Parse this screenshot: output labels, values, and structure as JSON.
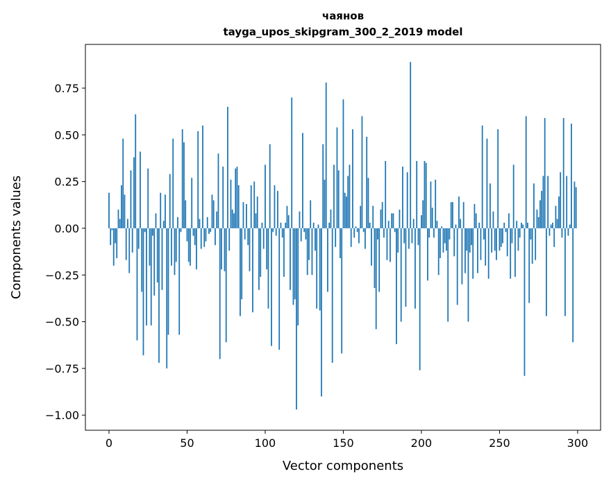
{
  "chart_data": {
    "type": "bar",
    "title": "чаянов",
    "subtitle": "tayga_upos_skipgram_300_2_2019 model",
    "xlabel": "Vector components",
    "ylabel": "Components values",
    "xlim": [
      -15.1,
      314.7
    ],
    "ylim": [
      -1.081,
      0.984
    ],
    "xticks": [
      0,
      50,
      100,
      150,
      200,
      250,
      300
    ],
    "yticks": [
      -1.0,
      -0.75,
      -0.5,
      -0.25,
      0.0,
      0.25,
      0.5,
      0.75
    ],
    "grid": false,
    "bar_color": "#1f77b4",
    "values": [
      0.19,
      -0.09,
      -0.01,
      -0.2,
      -0.08,
      -0.16,
      0.1,
      0.05,
      0.23,
      0.48,
      0.18,
      -0.17,
      0.05,
      -0.24,
      0.31,
      -0.13,
      0.38,
      0.61,
      -0.6,
      -0.11,
      0.41,
      -0.34,
      -0.68,
      -0.02,
      -0.52,
      0.32,
      -0.2,
      -0.52,
      -0.04,
      -0.36,
      0.08,
      -0.29,
      -0.72,
      0.19,
      -0.33,
      0.04,
      0.18,
      -0.75,
      -0.57,
      0.29,
      -0.2,
      0.48,
      -0.25,
      -0.18,
      0.06,
      -0.57,
      -0.02,
      0.53,
      0.46,
      0.15,
      -0.07,
      -0.18,
      -0.2,
      0.27,
      -0.04,
      -0.09,
      -0.22,
      0.52,
      0.05,
      -0.11,
      0.55,
      -0.1,
      -0.07,
      0.06,
      -0.03,
      -0.02,
      0.18,
      0.15,
      -0.09,
      0.09,
      0.4,
      -0.7,
      -0.22,
      0.33,
      -0.23,
      -0.61,
      0.65,
      -0.12,
      0.26,
      0.1,
      0.08,
      0.32,
      0.33,
      0.23,
      -0.47,
      -0.38,
      0.14,
      -0.06,
      0.13,
      -0.09,
      -0.23,
      0.23,
      -0.45,
      0.25,
      0.08,
      0.17,
      -0.33,
      -0.26,
      0.03,
      -0.11,
      0.34,
      -0.22,
      -0.43,
      0.45,
      -0.63,
      -0.02,
      0.23,
      -0.04,
      0.2,
      -0.65,
      0.03,
      -0.05,
      -0.26,
      0.03,
      0.12,
      0.07,
      -0.33,
      0.7,
      -0.41,
      -0.38,
      -0.97,
      -0.52,
      0.09,
      -0.07,
      0.51,
      -0.02,
      -0.06,
      -0.25,
      -0.17,
      0.15,
      -0.25,
      0.03,
      -0.12,
      -0.43,
      0.02,
      -0.44,
      -0.9,
      0.45,
      0.26,
      0.78,
      -0.34,
      0.03,
      0.1,
      -0.72,
      0.34,
      -0.1,
      0.54,
      0.31,
      -0.16,
      -0.67,
      0.69,
      0.19,
      0.17,
      0.28,
      0.34,
      -0.1,
      0.53,
      -0.05,
      0.01,
      -0.02,
      -0.08,
      0.12,
      0.6,
      -0.02,
      -0.11,
      0.49,
      0.27,
      0.03,
      -0.2,
      0.12,
      -0.32,
      -0.54,
      -0.06,
      -0.34,
      0.1,
      0.14,
      -0.05,
      0.36,
      -0.17,
      0.04,
      -0.18,
      0.08,
      0.08,
      -0.02,
      -0.62,
      -0.13,
      0.1,
      -0.5,
      0.33,
      -0.08,
      -0.42,
      0.3,
      -0.11,
      0.89,
      -0.08,
      0.05,
      -0.43,
      0.36,
      -0.09,
      -0.76,
      0.07,
      0.15,
      0.36,
      0.35,
      -0.28,
      -0.05,
      0.25,
      0.11,
      -0.05,
      0.26,
      0.04,
      -0.25,
      -0.16,
      0.01,
      -0.13,
      -0.08,
      -0.12,
      -0.5,
      -0.06,
      0.14,
      0.14,
      -0.15,
      0.02,
      -0.41,
      0.17,
      0.05,
      -0.3,
      0.14,
      -0.24,
      -0.12,
      -0.5,
      -0.13,
      -0.09,
      -0.27,
      0.13,
      0.08,
      -0.24,
      0.03,
      -0.17,
      0.55,
      -0.06,
      -0.2,
      0.48,
      -0.27,
      0.24,
      -0.13,
      0.09,
      -0.12,
      -0.17,
      0.53,
      -0.12,
      -0.1,
      -0.08,
      0.03,
      -0.02,
      -0.15,
      0.08,
      -0.27,
      -0.08,
      0.34,
      -0.26,
      0.04,
      -0.12,
      -0.05,
      0.03,
      0.02,
      -0.79,
      0.6,
      0.03,
      -0.4,
      -0.06,
      -0.19,
      0.24,
      -0.17,
      0.1,
      0.06,
      0.15,
      0.2,
      0.28,
      0.59,
      -0.47,
      0.28,
      -0.04,
      0.02,
      0.03,
      -0.1,
      0.12,
      0.05,
      0.17,
      0.3,
      -0.05,
      0.59,
      -0.47,
      0.28,
      -0.04,
      0.02,
      0.56,
      -0.61,
      0.25,
      0.22
    ]
  }
}
